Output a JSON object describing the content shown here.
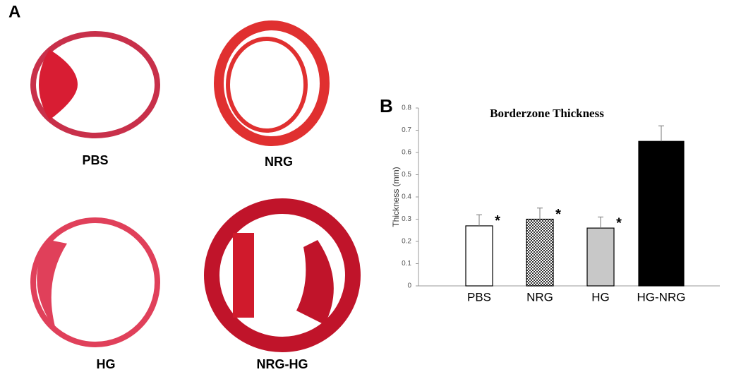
{
  "panel_a": {
    "label": "A",
    "images": [
      {
        "label": "PBS"
      },
      {
        "label": "NRG"
      },
      {
        "label": "HG"
      },
      {
        "label": "NRG-HG"
      }
    ]
  },
  "chart_data": {
    "panel_label": "B",
    "type": "bar",
    "title": "Borderzone Thickness",
    "y_label": "Thickness (mm)",
    "categories": [
      "PBS",
      "NRG",
      "HG",
      "HG-NRG"
    ],
    "values": [
      0.27,
      0.3,
      0.26,
      0.65
    ],
    "errors": [
      0.05,
      0.05,
      0.05,
      0.07
    ],
    "significance": [
      "*",
      "*",
      "*",
      null
    ],
    "colors": [
      "#ffffff",
      "#9a9a9a",
      "#c8c8c8",
      "#000000"
    ],
    "hatch": [
      false,
      true,
      false,
      false
    ],
    "ylim": [
      0,
      0.8
    ],
    "yticks": [
      0,
      0.1,
      0.2,
      0.3,
      0.4,
      0.5,
      0.6,
      0.7,
      0.8
    ],
    "grid": false
  }
}
